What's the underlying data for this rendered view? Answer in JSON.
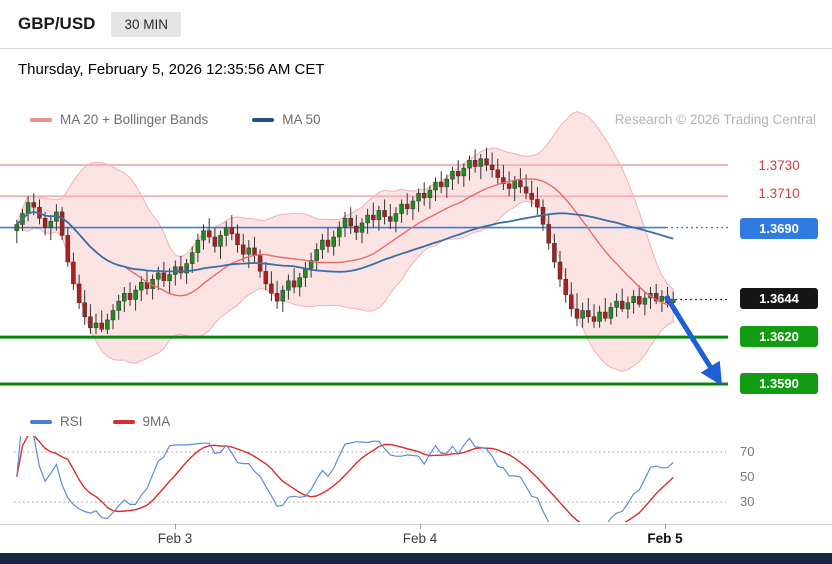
{
  "header": {
    "symbol": "GBP/USD",
    "timeframe": "30 MIN"
  },
  "date_line": "Thursday, February 5, 2026 12:35:56 AM CET",
  "legend": {
    "ma_bb": "MA 20 + Bollinger Bands",
    "ma50": "MA 50",
    "research": "Research © 2026 Trading Central"
  },
  "rsi_legend": {
    "rsi": "RSI",
    "ma9": "9MA"
  },
  "levels": {
    "r2": "1.3730",
    "r1": "1.3710",
    "pivot": "1.3690",
    "last": "1.3644",
    "s1": "1.3620",
    "s2": "1.3590"
  },
  "rsi_ticks": {
    "t70": "70",
    "t50": "50",
    "t30": "30"
  },
  "x_axis": {
    "labels": [
      "Feb 3",
      "Feb 4",
      "Feb 5"
    ]
  },
  "colors": {
    "accent_blue": "#2f7ce0",
    "pivot_blue": "#3b7fd6",
    "support_green": "#129c12",
    "support_line": "#0b860b",
    "resistance_red": "#d43c3c",
    "resistance_line": "#f2b4b4",
    "last_black": "#161616",
    "candle_up": "#1f8a1f",
    "candle_down": "#a62121",
    "wick": "#333333",
    "ma20": "#e96a6a",
    "ma50": "#3a6ea5",
    "bb_fill": "rgba(246,176,176,0.35)",
    "bb_edge": "#f3b0b0",
    "rsi_line": "#5b8dd9",
    "rsi_ma": "#d92b2b",
    "arrow_blue": "#1e5ed6"
  },
  "chart_data": {
    "type": "candlestick",
    "title": "GBP/USD 30 MIN",
    "timeframe_minutes": 30,
    "x_ticks": [
      "Feb 3",
      "Feb 4",
      "Feb 5"
    ],
    "ylim": [
      1.358,
      1.375
    ],
    "overlays": [
      "MA 20 + Bollinger Bands",
      "MA 50"
    ],
    "levels": {
      "resistance2": 1.373,
      "resistance1": 1.371,
      "pivot": 1.369,
      "last": 1.3644,
      "support1": 1.362,
      "support2": 1.359
    },
    "annotations": [
      {
        "type": "arrow",
        "direction": "down",
        "from_price": 1.3652,
        "to_price": 1.3594,
        "color": "#1e5ed6"
      }
    ],
    "indicator": {
      "type": "RSI",
      "overlay": "9MA",
      "ticks": [
        70,
        50,
        30
      ],
      "grid": [
        70,
        30
      ]
    },
    "candles": [
      [
        1.3688,
        1.3695,
        1.368,
        1.3692
      ],
      [
        1.3692,
        1.3702,
        1.3688,
        1.3699
      ],
      [
        1.3699,
        1.371,
        1.3694,
        1.3706
      ],
      [
        1.3706,
        1.3712,
        1.3698,
        1.3703
      ],
      [
        1.3703,
        1.3708,
        1.3692,
        1.3696
      ],
      [
        1.3696,
        1.37,
        1.3685,
        1.369
      ],
      [
        1.369,
        1.3698,
        1.3682,
        1.3694
      ],
      [
        1.3694,
        1.3705,
        1.3688,
        1.37
      ],
      [
        1.37,
        1.3703,
        1.3682,
        1.3685
      ],
      [
        1.3685,
        1.369,
        1.3665,
        1.3668
      ],
      [
        1.3668,
        1.3674,
        1.365,
        1.3654
      ],
      [
        1.3654,
        1.366,
        1.3638,
        1.3642
      ],
      [
        1.3642,
        1.365,
        1.3628,
        1.3633
      ],
      [
        1.3633,
        1.3641,
        1.3622,
        1.3626
      ],
      [
        1.3626,
        1.3635,
        1.3622,
        1.3629
      ],
      [
        1.3629,
        1.3637,
        1.3623,
        1.3625
      ],
      [
        1.3625,
        1.3635,
        1.3622,
        1.3631
      ],
      [
        1.3631,
        1.3641,
        1.3625,
        1.3637
      ],
      [
        1.3637,
        1.3647,
        1.3631,
        1.3643
      ],
      [
        1.3643,
        1.3652,
        1.3636,
        1.3648
      ],
      [
        1.3648,
        1.3655,
        1.364,
        1.3644
      ],
      [
        1.3644,
        1.3653,
        1.3637,
        1.365
      ],
      [
        1.365,
        1.3659,
        1.3643,
        1.3655
      ],
      [
        1.3655,
        1.3662,
        1.3647,
        1.3651
      ],
      [
        1.3651,
        1.366,
        1.3644,
        1.3657
      ],
      [
        1.3657,
        1.3665,
        1.365,
        1.3661
      ],
      [
        1.3661,
        1.3668,
        1.3652,
        1.3656
      ],
      [
        1.3656,
        1.3664,
        1.3648,
        1.366
      ],
      [
        1.366,
        1.3669,
        1.3653,
        1.3665
      ],
      [
        1.3665,
        1.3672,
        1.3657,
        1.3661
      ],
      [
        1.3661,
        1.367,
        1.3654,
        1.3667
      ],
      [
        1.3667,
        1.3678,
        1.3661,
        1.3674
      ],
      [
        1.3674,
        1.3686,
        1.3668,
        1.3682
      ],
      [
        1.3682,
        1.3692,
        1.3676,
        1.3688
      ],
      [
        1.3688,
        1.3696,
        1.368,
        1.3684
      ],
      [
        1.3684,
        1.369,
        1.3674,
        1.3678
      ],
      [
        1.3678,
        1.3688,
        1.367,
        1.3685
      ],
      [
        1.3685,
        1.3694,
        1.3678,
        1.369
      ],
      [
        1.369,
        1.3698,
        1.3682,
        1.3686
      ],
      [
        1.3686,
        1.3692,
        1.3674,
        1.3679
      ],
      [
        1.3679,
        1.3686,
        1.3668,
        1.3673
      ],
      [
        1.3673,
        1.3682,
        1.3664,
        1.3677
      ],
      [
        1.3677,
        1.3684,
        1.3668,
        1.3672
      ],
      [
        1.3672,
        1.3676,
        1.3658,
        1.3662
      ],
      [
        1.3662,
        1.3668,
        1.365,
        1.3654
      ],
      [
        1.3654,
        1.3662,
        1.3643,
        1.3648
      ],
      [
        1.3648,
        1.3656,
        1.3638,
        1.3643
      ],
      [
        1.3643,
        1.3653,
        1.3636,
        1.365
      ],
      [
        1.365,
        1.366,
        1.3644,
        1.3656
      ],
      [
        1.3656,
        1.3664,
        1.3648,
        1.3652
      ],
      [
        1.3652,
        1.3661,
        1.3646,
        1.3658
      ],
      [
        1.3658,
        1.3668,
        1.3652,
        1.3664
      ],
      [
        1.3664,
        1.3674,
        1.3658,
        1.3669
      ],
      [
        1.3669,
        1.368,
        1.3663,
        1.3676
      ],
      [
        1.3676,
        1.3686,
        1.367,
        1.3682
      ],
      [
        1.3682,
        1.369,
        1.3674,
        1.3678
      ],
      [
        1.3678,
        1.3688,
        1.3672,
        1.3684
      ],
      [
        1.3684,
        1.3694,
        1.3678,
        1.369
      ],
      [
        1.369,
        1.37,
        1.3684,
        1.3696
      ],
      [
        1.3696,
        1.3703,
        1.3686,
        1.3691
      ],
      [
        1.3691,
        1.3698,
        1.3682,
        1.3687
      ],
      [
        1.3687,
        1.3696,
        1.368,
        1.3693
      ],
      [
        1.3693,
        1.3702,
        1.3686,
        1.3698
      ],
      [
        1.3698,
        1.3706,
        1.369,
        1.3695
      ],
      [
        1.3695,
        1.3704,
        1.3688,
        1.3701
      ],
      [
        1.3701,
        1.3708,
        1.3692,
        1.3697
      ],
      [
        1.3697,
        1.3705,
        1.3689,
        1.3694
      ],
      [
        1.3694,
        1.3703,
        1.3687,
        1.3699
      ],
      [
        1.3699,
        1.3708,
        1.3693,
        1.3705
      ],
      [
        1.3705,
        1.3712,
        1.3698,
        1.3702
      ],
      [
        1.3702,
        1.371,
        1.3695,
        1.3707
      ],
      [
        1.3707,
        1.3715,
        1.37,
        1.3712
      ],
      [
        1.3712,
        1.3719,
        1.3704,
        1.3709
      ],
      [
        1.3709,
        1.3717,
        1.3702,
        1.3714
      ],
      [
        1.3714,
        1.3722,
        1.3707,
        1.3719
      ],
      [
        1.3719,
        1.3726,
        1.3712,
        1.3716
      ],
      [
        1.3716,
        1.3724,
        1.3709,
        1.3721
      ],
      [
        1.3721,
        1.3729,
        1.3714,
        1.3726
      ],
      [
        1.3726,
        1.3733,
        1.3718,
        1.3723
      ],
      [
        1.3723,
        1.3731,
        1.3716,
        1.3728
      ],
      [
        1.3728,
        1.3736,
        1.372,
        1.3733
      ],
      [
        1.3733,
        1.374,
        1.3725,
        1.3729
      ],
      [
        1.3729,
        1.3737,
        1.3721,
        1.3734
      ],
      [
        1.3734,
        1.3741,
        1.3726,
        1.373
      ],
      [
        1.373,
        1.3738,
        1.3722,
        1.3727
      ],
      [
        1.3727,
        1.3734,
        1.3718,
        1.3722
      ],
      [
        1.3722,
        1.373,
        1.3714,
        1.3718
      ],
      [
        1.3718,
        1.3726,
        1.371,
        1.3715
      ],
      [
        1.3715,
        1.3723,
        1.3707,
        1.372
      ],
      [
        1.372,
        1.3728,
        1.3712,
        1.3716
      ],
      [
        1.3716,
        1.3724,
        1.3708,
        1.3712
      ],
      [
        1.3712,
        1.372,
        1.3703,
        1.3708
      ],
      [
        1.3708,
        1.3716,
        1.3698,
        1.3703
      ],
      [
        1.3703,
        1.3708,
        1.3688,
        1.3692
      ],
      [
        1.3692,
        1.3698,
        1.3676,
        1.368
      ],
      [
        1.368,
        1.3686,
        1.3664,
        1.3668
      ],
      [
        1.3668,
        1.3675,
        1.3652,
        1.3657
      ],
      [
        1.3657,
        1.3664,
        1.3642,
        1.3647
      ],
      [
        1.3647,
        1.3655,
        1.3633,
        1.3638
      ],
      [
        1.3638,
        1.3648,
        1.3627,
        1.3632
      ],
      [
        1.3632,
        1.3642,
        1.3626,
        1.3637
      ],
      [
        1.3637,
        1.3645,
        1.3629,
        1.3633
      ],
      [
        1.3633,
        1.3641,
        1.3626,
        1.363
      ],
      [
        1.363,
        1.364,
        1.3626,
        1.3636
      ],
      [
        1.3636,
        1.3645,
        1.363,
        1.3632
      ],
      [
        1.3632,
        1.3642,
        1.3628,
        1.3639
      ],
      [
        1.3639,
        1.3648,
        1.3633,
        1.3643
      ],
      [
        1.3643,
        1.3651,
        1.3636,
        1.3638
      ],
      [
        1.3638,
        1.3646,
        1.3632,
        1.3642
      ],
      [
        1.3642,
        1.365,
        1.3635,
        1.3646
      ],
      [
        1.3646,
        1.3653,
        1.3639,
        1.3641
      ],
      [
        1.3641,
        1.3649,
        1.3634,
        1.3645
      ],
      [
        1.3645,
        1.3652,
        1.3638,
        1.3648
      ],
      [
        1.3648,
        1.3654,
        1.3641,
        1.3643
      ],
      [
        1.3643,
        1.365,
        1.3636,
        1.3646
      ],
      [
        1.3646,
        1.3652,
        1.3639,
        1.3642
      ],
      [
        1.3642,
        1.3649,
        1.3637,
        1.3644
      ]
    ]
  }
}
